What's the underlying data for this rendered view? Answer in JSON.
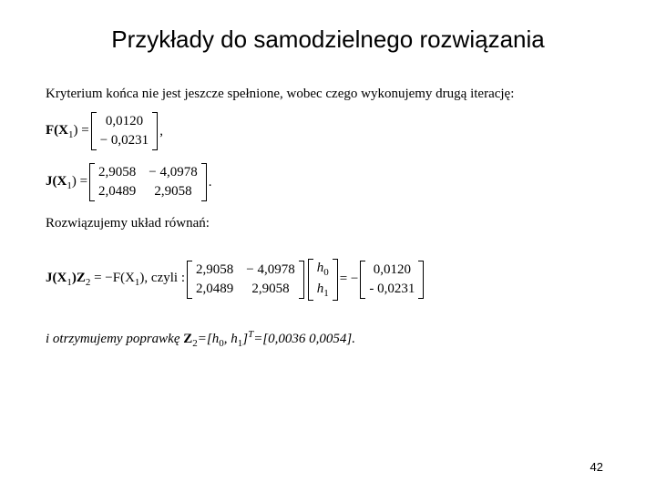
{
  "title": "Przykłady do samodzielnego rozwiązania",
  "para1": "Kryterium końca nie jest jeszcze spełnione, wobec czego wykonujemy drugą iterację:",
  "F": {
    "label_pre": "F(X",
    "label_sub": "1",
    "label_post": ") = ",
    "r1": "0,0120",
    "r2": "− 0,0231",
    "tail": ","
  },
  "J": {
    "label_pre": "J(X",
    "label_sub": "1",
    "label_post": ") = ",
    "a": "2,9058",
    "b": "− 4,0978",
    "c": "2,0489",
    "d": "2,9058",
    "tail": "."
  },
  "para2": "Rozwiązujemy układ równań:",
  "eq3": {
    "lhs_pre": "J(X",
    "lhs_sub": "1",
    "lhs_mid": ")Z",
    "lhs_sub2": "2",
    "lhs_post": " = −F(X",
    "lhs_sub3": "1",
    "lhs_end": "), czyli : ",
    "M1a": "2,9058",
    "M1b": "− 4,0978",
    "M1c": "2,0489",
    "M1d": "2,9058",
    "V1a": "h",
    "V1a_sub": "0",
    "V1b": "h",
    "V1b_sub": "1",
    "eq": " = − ",
    "R1": "0,0120",
    "R2": "- 0,0231"
  },
  "result": {
    "pre": "i otrzymujemy poprawkę ",
    "Z": "Z",
    "Zsub": "2",
    "mid1": "=[h",
    "h0sub": "0",
    "comma": ", h",
    "h1sub": "1",
    "mid2": "]",
    "T": "T",
    "tail": "=[0,0036  0,0054]."
  },
  "pageNumber": "42"
}
